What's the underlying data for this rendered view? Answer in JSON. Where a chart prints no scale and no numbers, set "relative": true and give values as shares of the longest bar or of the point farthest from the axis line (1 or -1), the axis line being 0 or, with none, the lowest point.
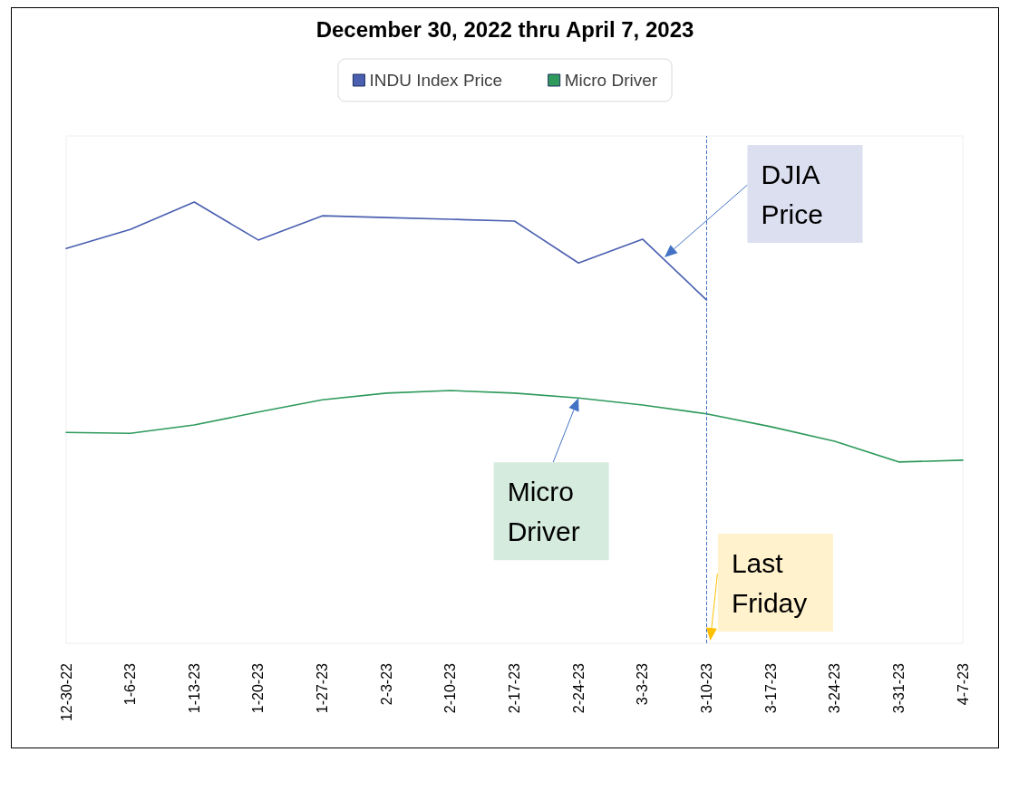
{
  "chart_data": {
    "type": "line",
    "title": "December 30, 2022 thru April 7, 2023",
    "relative": true,
    "categories": [
      "12-30-22",
      "1-6-23",
      "1-13-23",
      "1-20-23",
      "1-27-23",
      "2-3-23",
      "2-10-23",
      "2-17-23",
      "2-24-23",
      "3-3-23",
      "3-10-23",
      "3-17-23",
      "3-24-23",
      "3-31-23",
      "4-7-23"
    ],
    "series": [
      {
        "name": "INDU Index Price",
        "color": "#4a5fb0",
        "values": [
          0.895,
          0.938,
          1,
          0.914,
          0.969,
          0.965,
          0.961,
          0.957,
          0.862,
          0.916,
          0.778,
          null,
          null,
          null,
          null
        ]
      },
      {
        "name": "Micro Driver",
        "color": "#2e9a5c",
        "values": [
          0.478,
          0.476,
          0.495,
          0.524,
          0.552,
          0.567,
          0.573,
          0.567,
          0.556,
          0.54,
          0.52,
          0.491,
          0.458,
          0.411,
          0.415
        ]
      }
    ],
    "annotations": [
      "DJIA Price",
      {
        "text": "Micro Driver",
        "x": "2-24-23",
        "y": 0.556
      }
    ],
    "ref_lines": [
      {
        "axis": "x",
        "value": "3-10-23",
        "label": "Last Friday",
        "color": "#4472c4",
        "line_style": "dashed"
      }
    ],
    "legend": "top",
    "grid": false,
    "marker": "none",
    "line_style": "solid"
  }
}
